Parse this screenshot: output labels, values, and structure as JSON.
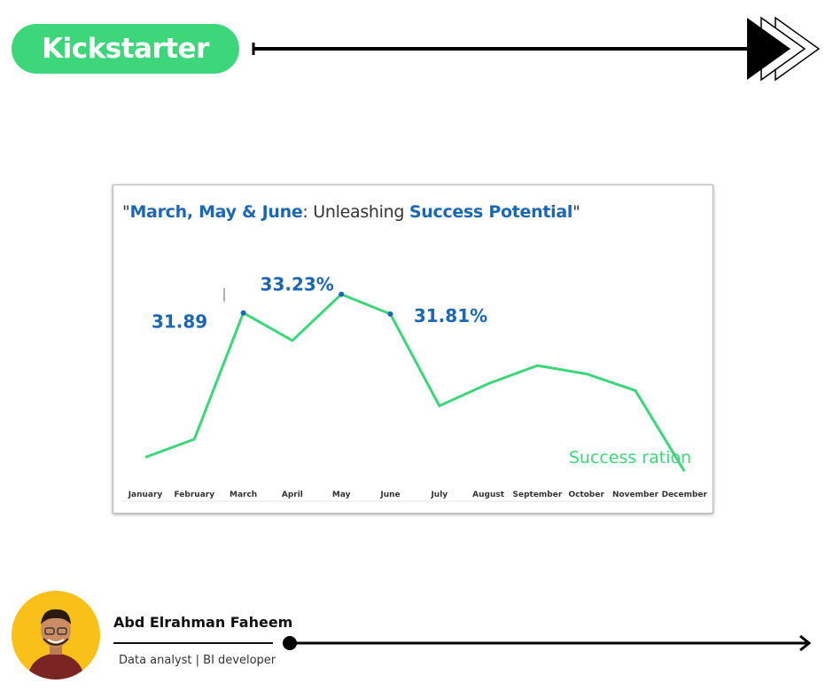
{
  "header": {
    "brand_label": "Kickstarter",
    "brand_color": "#3ed67a"
  },
  "chart_data": {
    "type": "line",
    "title_parts": [
      {
        "text": "\"",
        "highlight": false
      },
      {
        "text": "March, May & June",
        "highlight": true
      },
      {
        "text": ": Unleashing ",
        "highlight": false
      },
      {
        "text": "Success Potential",
        "highlight": true
      },
      {
        "text": "\"",
        "highlight": false
      }
    ],
    "categories": [
      "January",
      "February",
      "March",
      "April",
      "May",
      "June",
      "July",
      "August",
      "September",
      "October",
      "November",
      "December"
    ],
    "series": [
      {
        "name": "Success ration",
        "color": "#3ed67a",
        "values": [
          21.5,
          22.8,
          31.89,
          29.9,
          33.23,
          31.81,
          25.2,
          26.8,
          28.1,
          27.5,
          26.3,
          20.5
        ]
      }
    ],
    "highlight_points": [
      {
        "category": "March",
        "label": "31.89"
      },
      {
        "category": "May",
        "label": "33.23%"
      },
      {
        "category": "June",
        "label": "31.81%"
      }
    ],
    "highlight_color": "#1b67b4",
    "ylim": [
      20,
      35
    ],
    "grid": false,
    "legend": "bottom-right"
  },
  "footer": {
    "author_name": "Abd Elrahman Faheem",
    "author_role": "Data analyst | BI developer",
    "avatar_color": "#f9c019"
  }
}
